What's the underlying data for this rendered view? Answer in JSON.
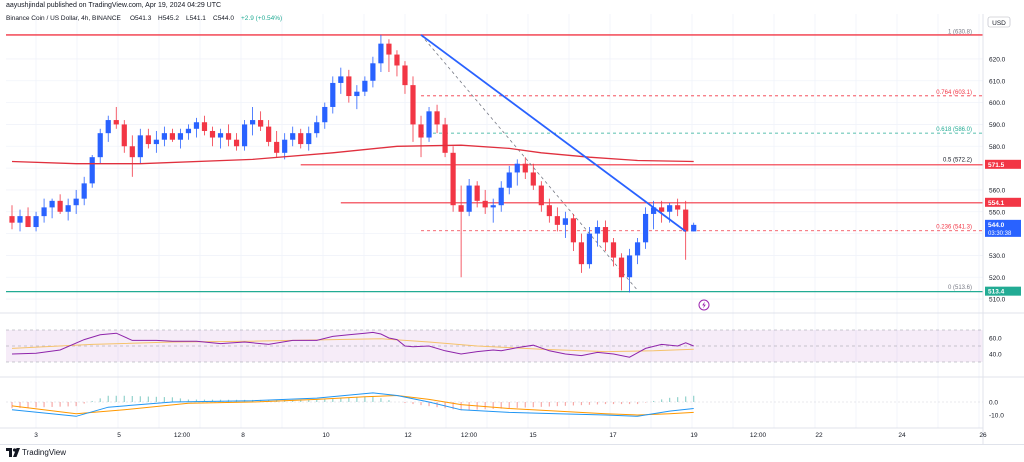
{
  "header": {
    "author_line": "aayushjindal published on TradingView.com, Apr 19, 2024 04:29 UTC",
    "symbol_line": "Binance Coin / US Dollar, 4h, BINANCE",
    "ohlc": {
      "o": "O541.3",
      "h": "H545.2",
      "l": "L541.1",
      "c": "C544.0",
      "chg": "+2.9 (+0.54%)"
    },
    "currency": "USD"
  },
  "footer": {
    "brand": "TradingView"
  },
  "price_axis": {
    "ticks": [
      "620.0",
      "610.0",
      "600.0",
      "590.0",
      "580.0",
      "560.0",
      "550.0",
      "530.0",
      "520.0",
      "510.0"
    ],
    "badges": [
      {
        "value": "571.5",
        "color": "#f23645"
      },
      {
        "value": "554.1",
        "color": "#f23645"
      },
      {
        "value": "544.0",
        "subtext": "03:30:38",
        "color": "#2962ff"
      },
      {
        "value": "513.4",
        "color": "#22ab94"
      }
    ]
  },
  "fib_levels": [
    {
      "ratio": "1",
      "value": "630.8",
      "label": "1 (630.8)",
      "color": "#787b86"
    },
    {
      "ratio": "0.764",
      "value": "603.1",
      "label": "0.764 (603.1)",
      "color": "#f23645"
    },
    {
      "ratio": "0.618",
      "value": "586.0",
      "label": "0.618 (586.0)",
      "color": "#22ab94"
    },
    {
      "ratio": "0.5",
      "value": "572.2",
      "label": "0.5 (572.2)",
      "color": "#131722"
    },
    {
      "ratio": "0.236",
      "value": "541.3",
      "label": "0.236 (541.3)",
      "color": "#f23645"
    },
    {
      "ratio": "0",
      "value": "513.6",
      "label": "0 (513.6)",
      "color": "#787b86"
    }
  ],
  "rsi_axis": {
    "ticks": [
      "60.0",
      "40.0"
    ]
  },
  "macd_axis": {
    "ticks": [
      "0.0",
      "-10.0"
    ]
  },
  "time_axis": {
    "labels": [
      "3",
      "5",
      "12:00",
      "8",
      "10",
      "12",
      "12:00",
      "15",
      "17",
      "19",
      "12:00",
      "22",
      "24",
      "26"
    ]
  },
  "chart_data": {
    "type": "candlestick",
    "timeframe": "4h",
    "symbol": "BNBUSD",
    "ylim": [
      505,
      636
    ],
    "candles": [
      [
        548,
        553,
        542,
        545
      ],
      [
        545,
        551,
        541,
        548
      ],
      [
        548,
        552,
        544,
        543
      ],
      [
        543,
        550,
        541,
        548
      ],
      [
        548,
        556,
        545,
        552
      ],
      [
        552,
        556,
        547,
        555
      ],
      [
        555,
        558,
        549,
        550
      ],
      [
        550,
        556,
        546,
        553
      ],
      [
        553,
        560,
        549,
        556
      ],
      [
        556,
        566,
        553,
        563
      ],
      [
        563,
        576,
        561,
        575
      ],
      [
        575,
        588,
        572,
        586
      ],
      [
        586,
        594,
        582,
        592
      ],
      [
        592,
        598,
        588,
        590
      ],
      [
        590,
        592,
        577,
        580
      ],
      [
        580,
        585,
        566,
        575
      ],
      [
        575,
        588,
        572,
        585
      ],
      [
        585,
        588,
        579,
        581
      ],
      [
        581,
        587,
        577,
        583
      ],
      [
        583,
        589,
        580,
        586
      ],
      [
        586,
        588,
        582,
        583
      ],
      [
        583,
        588,
        579,
        586
      ],
      [
        586,
        590,
        583,
        588
      ],
      [
        588,
        593,
        584,
        591
      ],
      [
        591,
        594,
        585,
        587
      ],
      [
        587,
        589,
        580,
        584
      ],
      [
        584,
        588,
        579,
        586
      ],
      [
        586,
        590,
        580,
        583
      ],
      [
        583,
        586,
        578,
        580
      ],
      [
        580,
        592,
        578,
        590
      ],
      [
        590,
        598,
        585,
        592
      ],
      [
        592,
        596,
        587,
        589
      ],
      [
        589,
        592,
        580,
        582
      ],
      [
        582,
        587,
        575,
        577
      ],
      [
        577,
        586,
        574,
        583
      ],
      [
        583,
        589,
        580,
        586
      ],
      [
        586,
        588,
        579,
        581
      ],
      [
        581,
        589,
        578,
        586
      ],
      [
        586,
        594,
        584,
        591
      ],
      [
        591,
        600,
        588,
        598
      ],
      [
        598,
        612,
        595,
        609
      ],
      [
        609,
        616,
        604,
        612
      ],
      [
        612,
        615,
        600,
        603
      ],
      [
        603,
        608,
        597,
        605
      ],
      [
        605,
        612,
        603,
        610
      ],
      [
        610,
        621,
        607,
        618
      ],
      [
        618,
        631,
        614,
        627
      ],
      [
        627,
        629,
        614,
        622
      ],
      [
        622,
        624,
        612,
        617
      ],
      [
        617,
        619,
        604,
        608
      ],
      [
        608,
        612,
        582,
        590
      ],
      [
        590,
        594,
        575,
        584
      ],
      [
        584,
        598,
        582,
        596
      ],
      [
        596,
        599,
        586,
        590
      ],
      [
        590,
        593,
        575,
        577
      ],
      [
        577,
        580,
        550,
        553
      ],
      [
        553,
        562,
        520,
        550
      ],
      [
        550,
        565,
        548,
        562
      ],
      [
        562,
        564,
        552,
        555
      ],
      [
        555,
        560,
        549,
        552
      ],
      [
        552,
        556,
        545,
        553
      ],
      [
        553,
        564,
        550,
        561
      ],
      [
        561,
        571,
        558,
        568
      ],
      [
        568,
        574,
        562,
        572
      ],
      [
        572,
        575,
        565,
        568
      ],
      [
        568,
        572,
        560,
        562
      ],
      [
        562,
        564,
        550,
        553
      ],
      [
        553,
        556,
        545,
        548
      ],
      [
        548,
        552,
        541,
        544
      ],
      [
        544,
        550,
        538,
        547
      ],
      [
        547,
        549,
        532,
        536
      ],
      [
        536,
        540,
        522,
        526
      ],
      [
        526,
        543,
        524,
        540
      ],
      [
        540,
        546,
        534,
        543
      ],
      [
        543,
        546,
        532,
        536
      ],
      [
        536,
        538,
        525,
        529
      ],
      [
        529,
        531,
        514,
        520
      ],
      [
        520,
        533,
        513,
        530
      ],
      [
        530,
        538,
        526,
        536
      ],
      [
        536,
        552,
        533,
        549
      ],
      [
        549,
        555,
        542,
        552
      ],
      [
        552,
        555,
        545,
        550
      ],
      [
        550,
        554,
        545,
        553
      ],
      [
        553,
        556,
        548,
        551
      ],
      [
        551,
        555,
        528,
        541
      ],
      [
        541,
        545,
        541,
        544
      ]
    ],
    "sma": [
      [
        0,
        573
      ],
      [
        8,
        572
      ],
      [
        16,
        572
      ],
      [
        30,
        574
      ],
      [
        40,
        577
      ],
      [
        48,
        580
      ],
      [
        56,
        580.5
      ],
      [
        62,
        579
      ],
      [
        66,
        577
      ],
      [
        72,
        575
      ],
      [
        78,
        573.5
      ],
      [
        85,
        573
      ]
    ],
    "rsi": [
      [
        0,
        40
      ],
      [
        3,
        41
      ],
      [
        6,
        45
      ],
      [
        9,
        58
      ],
      [
        11,
        64
      ],
      [
        13,
        66
      ],
      [
        15,
        57
      ],
      [
        18,
        57
      ],
      [
        20,
        56
      ],
      [
        23,
        56
      ],
      [
        26,
        53
      ],
      [
        29,
        55
      ],
      [
        32,
        52
      ],
      [
        35,
        57
      ],
      [
        38,
        57
      ],
      [
        40,
        62
      ],
      [
        42,
        64
      ],
      [
        44,
        66
      ],
      [
        45,
        67
      ],
      [
        46,
        65
      ],
      [
        47,
        60
      ],
      [
        48,
        58
      ],
      [
        49,
        50
      ],
      [
        50,
        49
      ],
      [
        52,
        50
      ],
      [
        54,
        44
      ],
      [
        56,
        40
      ],
      [
        58,
        43
      ],
      [
        60,
        45
      ],
      [
        61,
        44
      ],
      [
        63,
        48
      ],
      [
        65,
        51
      ],
      [
        67,
        44
      ],
      [
        69,
        40
      ],
      [
        71,
        38
      ],
      [
        73,
        42
      ],
      [
        75,
        40
      ],
      [
        77,
        36
      ],
      [
        79,
        47
      ],
      [
        81,
        52
      ],
      [
        83,
        50
      ],
      [
        84,
        54
      ],
      [
        85,
        50
      ]
    ],
    "rsi_ma": [
      [
        0,
        47
      ],
      [
        10,
        52
      ],
      [
        20,
        55
      ],
      [
        30,
        56
      ],
      [
        40,
        58
      ],
      [
        46,
        59
      ],
      [
        52,
        55
      ],
      [
        58,
        50
      ],
      [
        66,
        46
      ],
      [
        74,
        43
      ],
      [
        80,
        44
      ],
      [
        85,
        46
      ]
    ],
    "macd": [
      [
        0,
        -6
      ],
      [
        8,
        -11
      ],
      [
        12,
        -4
      ],
      [
        20,
        0
      ],
      [
        30,
        1
      ],
      [
        38,
        3
      ],
      [
        45,
        7
      ],
      [
        48,
        5
      ],
      [
        52,
        0
      ],
      [
        56,
        -6
      ],
      [
        62,
        -8
      ],
      [
        68,
        -9
      ],
      [
        74,
        -10
      ],
      [
        78,
        -11
      ],
      [
        82,
        -7
      ],
      [
        85,
        -5
      ]
    ],
    "macd_signal": [
      [
        0,
        -3
      ],
      [
        8,
        -9
      ],
      [
        14,
        -6
      ],
      [
        22,
        -1
      ],
      [
        30,
        0
      ],
      [
        38,
        2
      ],
      [
        44,
        4
      ],
      [
        48,
        5
      ],
      [
        52,
        2
      ],
      [
        56,
        -2
      ],
      [
        62,
        -5
      ],
      [
        68,
        -7
      ],
      [
        74,
        -9
      ],
      [
        78,
        -10
      ],
      [
        82,
        -9
      ],
      [
        85,
        -8
      ]
    ],
    "annotations": {
      "trendline": {
        "from": [
          51,
          631
        ],
        "to": [
          84,
          541
        ],
        "color": "#2962ff"
      },
      "fib_dash": {
        "from": [
          51,
          631
        ],
        "to": [
          78,
          514
        ],
        "color": "#787b86"
      },
      "resistance_top": {
        "value": 631,
        "color": "#f23645"
      },
      "resistance_571": {
        "value": 571.5,
        "from_index": 36,
        "color": "#f23645"
      },
      "resistance_554": {
        "value": 554.1,
        "from_index": 41,
        "color": "#f23645"
      },
      "support_513": {
        "value": 513.4,
        "color": "#22ab94"
      },
      "dashed_541": {
        "value": 541.3,
        "from_index": 51,
        "color": "#f23645"
      },
      "dashed_586": {
        "value": 586.0,
        "from_index": 51,
        "color": "#22ab94"
      },
      "dashed_603": {
        "value": 603.1,
        "from_index": 51,
        "color": "#f23645"
      }
    },
    "colors": {
      "up": "#2962ff",
      "down": "#f23645",
      "sma": "#e0303e",
      "rsi": "#8e24aa",
      "rsi_ma": "#f5c26b",
      "macd": "#2196f3",
      "signal": "#ff9800"
    }
  }
}
